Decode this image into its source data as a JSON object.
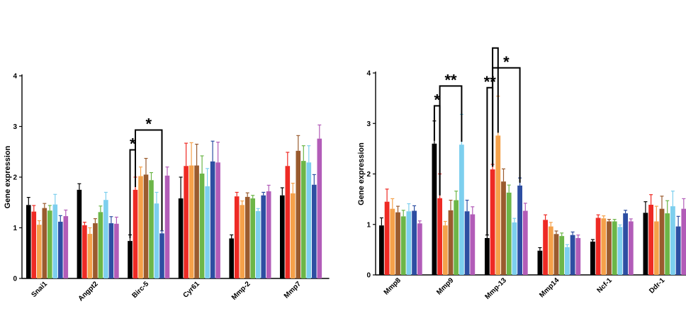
{
  "colors": {
    "series": [
      "#000000",
      "#ee2a24",
      "#f5a14a",
      "#9a5b2e",
      "#6cb648",
      "#7dcfee",
      "#2d4ea2",
      "#b25cb8"
    ],
    "axis": "#000000"
  },
  "chart_data": [
    {
      "type": "bar",
      "ylabel": "Gene expression",
      "ylim": [
        0,
        4
      ],
      "yticks": [
        "0",
        "1",
        "2",
        "3",
        "4"
      ],
      "categories": [
        "Snai1",
        "Angpt2",
        "Birc-5",
        "Cyr61",
        "Mmp-2",
        "Mmp7"
      ],
      "series": [
        {
          "values": [
            1.45,
            1.75,
            0.74,
            1.58,
            0.79,
            1.64
          ],
          "errors": [
            0.15,
            0.12,
            0.12,
            0.42,
            0.07,
            0.15
          ]
        },
        {
          "values": [
            1.32,
            1.05,
            1.75,
            2.22,
            1.62,
            2.22
          ],
          "errors": [
            0.12,
            0.06,
            0.25,
            0.45,
            0.08,
            0.27
          ]
        },
        {
          "values": [
            1.06,
            0.88,
            2.02,
            2.23,
            1.45,
            1.68
          ],
          "errors": [
            0.08,
            0.12,
            0.18,
            0.45,
            0.08,
            0.2
          ]
        },
        {
          "values": [
            1.39,
            1.09,
            2.05,
            2.23,
            1.61,
            2.52
          ],
          "errors": [
            0.09,
            0.09,
            0.32,
            0.42,
            0.08,
            0.3
          ]
        },
        {
          "values": [
            1.34,
            1.31,
            1.94,
            2.07,
            1.58,
            2.32
          ],
          "errors": [
            0.1,
            0.12,
            0.15,
            0.35,
            0.06,
            0.3
          ]
        },
        {
          "values": [
            1.46,
            1.55,
            1.48,
            1.82,
            1.33,
            2.29
          ],
          "errors": [
            0.2,
            0.15,
            0.22,
            0.35,
            0.05,
            0.33
          ]
        },
        {
          "values": [
            1.12,
            1.09,
            0.89,
            2.31,
            1.64,
            1.85
          ],
          "errors": [
            0.12,
            0.13,
            0.05,
            0.4,
            0.06,
            0.2
          ]
        },
        {
          "values": [
            1.23,
            1.08,
            2.03,
            2.29,
            1.72,
            2.76
          ],
          "errors": [
            0.12,
            0.13,
            0.17,
            0.4,
            0.12,
            0.27
          ]
        }
      ],
      "significance": [
        {
          "label": "*",
          "category": 2,
          "from_series": 0,
          "to_series": 1
        },
        {
          "label": "*",
          "category": 2,
          "from_series": 1,
          "to_series": 6
        }
      ]
    },
    {
      "type": "bar",
      "ylabel": "Gene expression",
      "ylim": [
        0,
        4
      ],
      "yticks": [
        "0",
        "1",
        "2",
        "3",
        "4"
      ],
      "categories": [
        "Mmp8",
        "Mmp9",
        "Mmp-13",
        "Mmp14",
        "Ncf-1",
        "Ddr-1"
      ],
      "series": [
        {
          "values": [
            0.98,
            2.6,
            0.73,
            0.48,
            0.66,
            1.23
          ],
          "errors": [
            0.15,
            0.45,
            0.06,
            0.06,
            0.04,
            0.22
          ]
        },
        {
          "values": [
            1.45,
            1.52,
            2.09,
            1.09,
            1.13,
            1.39
          ],
          "errors": [
            0.25,
            0.48,
            0.1,
            0.1,
            0.06,
            0.2
          ]
        },
        {
          "values": [
            1.31,
            0.98,
            2.76,
            0.96,
            1.12,
            1.06
          ],
          "errors": [
            0.2,
            0.08,
            0.78,
            0.08,
            0.05,
            0.3
          ]
        },
        {
          "values": [
            1.24,
            1.28,
            1.85,
            0.81,
            1.06,
            1.31
          ],
          "errors": [
            0.12,
            0.2,
            0.25,
            0.06,
            0.04,
            0.25
          ]
        },
        {
          "values": [
            1.16,
            1.48,
            1.63,
            0.77,
            1.06,
            1.22
          ],
          "errors": [
            0.12,
            0.18,
            0.15,
            0.06,
            0.04,
            0.25
          ]
        },
        {
          "values": [
            1.26,
            2.58,
            1.04,
            0.55,
            0.95,
            1.36
          ],
          "errors": [
            0.15,
            0.6,
            0.08,
            0.05,
            0.04,
            0.3
          ]
        },
        {
          "values": [
            1.27,
            1.26,
            1.77,
            0.79,
            1.22,
            0.96
          ],
          "errors": [
            0.1,
            0.22,
            0.15,
            0.06,
            0.06,
            0.2
          ]
        },
        {
          "values": [
            1.02,
            1.2,
            1.27,
            0.73,
            1.06,
            1.31
          ],
          "errors": [
            0.05,
            0.15,
            0.15,
            0.06,
            0.05,
            0.2
          ]
        }
      ],
      "significance": [
        {
          "label": "*",
          "category": 1,
          "from_series": 0,
          "to_series": 1
        },
        {
          "label": "**",
          "category": 1,
          "from_series": 1,
          "to_series": 5
        },
        {
          "label": "**",
          "category": 2,
          "from_series": 0,
          "to_series": 1
        },
        {
          "label": "*",
          "category": 2,
          "from_series": 1,
          "to_series": 6
        },
        {
          "label": "",
          "category": 2,
          "from_series": 1,
          "to_series": 2
        }
      ]
    }
  ]
}
